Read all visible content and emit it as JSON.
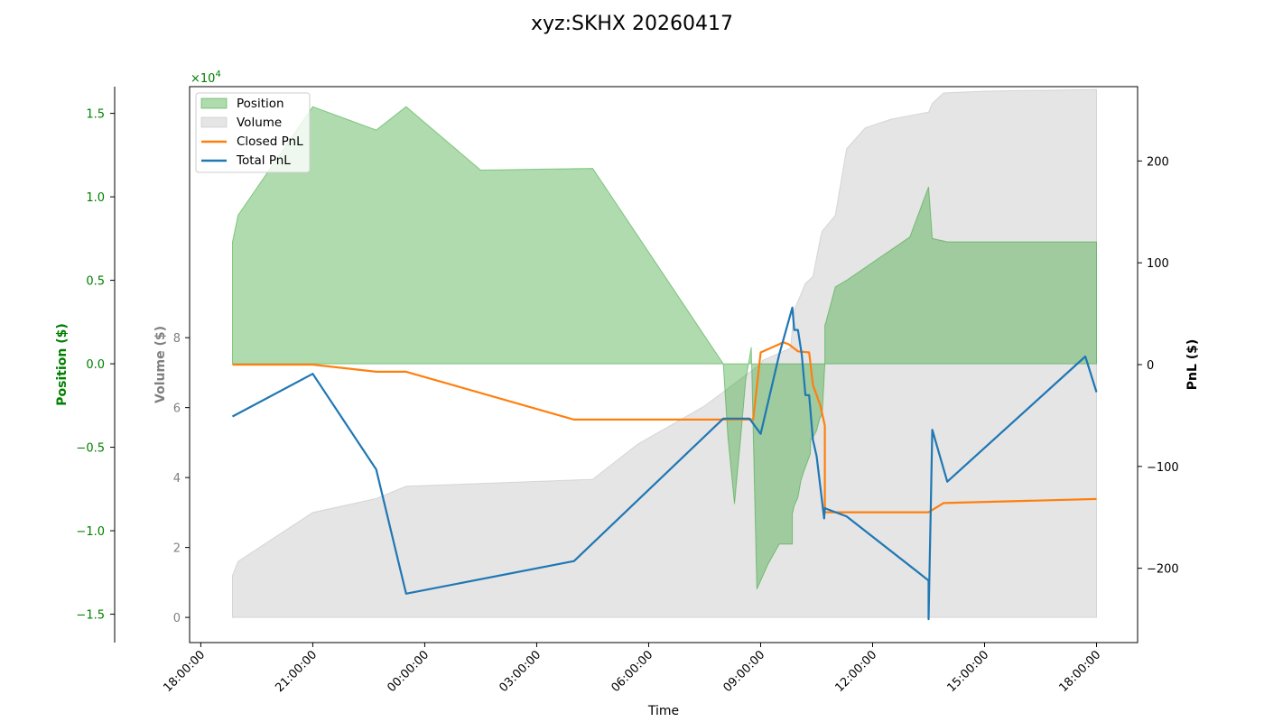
{
  "chart_data": {
    "type": "area",
    "title": "xyz:SKHX 20260417",
    "xlabel": "Time",
    "x_ticks": [
      "18:00:00",
      "21:00:00",
      "00:00:00",
      "03:00:00",
      "06:00:00",
      "09:00:00",
      "12:00:00",
      "15:00:00",
      "18:00:00"
    ],
    "x_unit": "hours since 18:00:00",
    "x_range": [
      -0.3,
      25.1
    ],
    "legend": {
      "placement": "top-left",
      "entries": [
        "Position",
        "Volume",
        "Closed PnL",
        "Total PnL"
      ]
    },
    "axes": {
      "position": {
        "label": "Position ($)",
        "color": "#008000",
        "range": [
          -16700,
          16600
        ],
        "ticks": [
          1.5,
          1.0,
          0.5,
          0.0,
          -0.5,
          -1.0,
          -1.5
        ],
        "tick_labels": [
          "1.5",
          "1.0",
          "0.5",
          "0.0",
          "−0.5",
          "−1.0",
          "−1.5"
        ],
        "scale_label": "×10",
        "scale_exponent": "4",
        "side": "left-outer"
      },
      "volume": {
        "label": "Volume ($)",
        "color": "#808080",
        "range": [
          -7200,
          151800
        ],
        "ticks": [
          0,
          20000,
          40000,
          60000,
          80000
        ],
        "tick_labels": [
          "0",
          "2",
          "4",
          "6",
          "8"
        ],
        "side": "left-inner"
      },
      "pnl": {
        "label": "PnL ($)",
        "color": "#000000",
        "range": [
          -273,
          273
        ],
        "ticks": [
          200,
          100,
          0,
          -100,
          -200
        ],
        "tick_labels": [
          "200",
          "100",
          "0",
          "−100",
          "−200"
        ],
        "side": "right"
      }
    },
    "series": [
      {
        "name": "Position",
        "kind": "area",
        "axis": "position",
        "color": "#2ca02c",
        "x": [
          0.85,
          0.85,
          1.0,
          3.0,
          4.7,
          5.5,
          7.5,
          10.5,
          14.0,
          14.12,
          14.3,
          14.47,
          14.6,
          14.75,
          14.9,
          15.2,
          15.5,
          15.85,
          15.85,
          15.9,
          16.0,
          16.08,
          16.15,
          16.33,
          16.34,
          16.38,
          16.5,
          16.58,
          16.65,
          16.72,
          16.72,
          16.75,
          17.0,
          17.3,
          19.0,
          19.5,
          19.6,
          20.0,
          21.0,
          23.0,
          24.0
        ],
        "y": [
          0,
          7300,
          8900,
          15400,
          14000,
          15400,
          11600,
          11700,
          0,
          -4300,
          -8400,
          -4300,
          -1000,
          1000,
          -13500,
          -12000,
          -10800,
          -10800,
          -9000,
          -8500,
          -8000,
          -7000,
          -6500,
          -5400,
          -4500,
          -4500,
          -4000,
          -3300,
          -3000,
          0,
          2300,
          2500,
          4600,
          5000,
          7600,
          10600,
          7500,
          7300,
          7300,
          7300,
          7300
        ]
      },
      {
        "name": "Volume",
        "kind": "area",
        "axis": "volume",
        "color": "#bbbbbb",
        "x": [
          0.85,
          0.85,
          1.0,
          3.0,
          4.7,
          5.5,
          10.5,
          11.7,
          13.5,
          15.0,
          15.05,
          15.8,
          15.9,
          16.2,
          16.4,
          16.6,
          16.65,
          17.0,
          17.3,
          17.8,
          18.5,
          19.5,
          19.6,
          19.9,
          21.0,
          24.0
        ],
        "y": [
          0,
          12000,
          16000,
          30000,
          34000,
          37500,
          39500,
          49500,
          60500,
          72500,
          73500,
          77000,
          88000,
          95500,
          97500,
          108500,
          110500,
          115000,
          134000,
          140000,
          142500,
          144500,
          147000,
          150000,
          150500,
          151000
        ]
      },
      {
        "name": "Closed PnL",
        "kind": "line",
        "axis": "pnl",
        "color": "#ff7f0e",
        "x": [
          0.85,
          3.0,
          4.7,
          5.5,
          10.0,
          14.0,
          14.8,
          15.0,
          15.5,
          15.6,
          15.75,
          16.0,
          16.3,
          16.4,
          16.6,
          16.72,
          16.72,
          19.5,
          19.9,
          24.0
        ],
        "y": [
          0,
          0,
          -7,
          -7,
          -54,
          -54,
          -54,
          12,
          20,
          22,
          20,
          13,
          12,
          -20,
          -40,
          -60,
          -145,
          -145,
          -136,
          -132
        ]
      },
      {
        "name": "Total PnL",
        "kind": "line",
        "axis": "pnl",
        "color": "#1f77b4",
        "x": [
          0.85,
          3.0,
          4.7,
          5.5,
          10.0,
          14.0,
          14.7,
          15.0,
          15.5,
          15.85,
          15.9,
          16.0,
          16.1,
          16.2,
          16.3,
          16.4,
          16.5,
          16.7,
          16.72,
          17.3,
          19.5,
          19.5,
          19.6,
          20.0,
          23.7,
          24.0
        ],
        "y": [
          -51,
          -9,
          -103,
          -225,
          -193,
          -53,
          -53,
          -68,
          10,
          56,
          34,
          34,
          10,
          -30,
          -30,
          -74,
          -90,
          -151,
          -141,
          -149,
          -212,
          -250,
          -64,
          -115,
          8,
          -27
        ]
      }
    ]
  }
}
